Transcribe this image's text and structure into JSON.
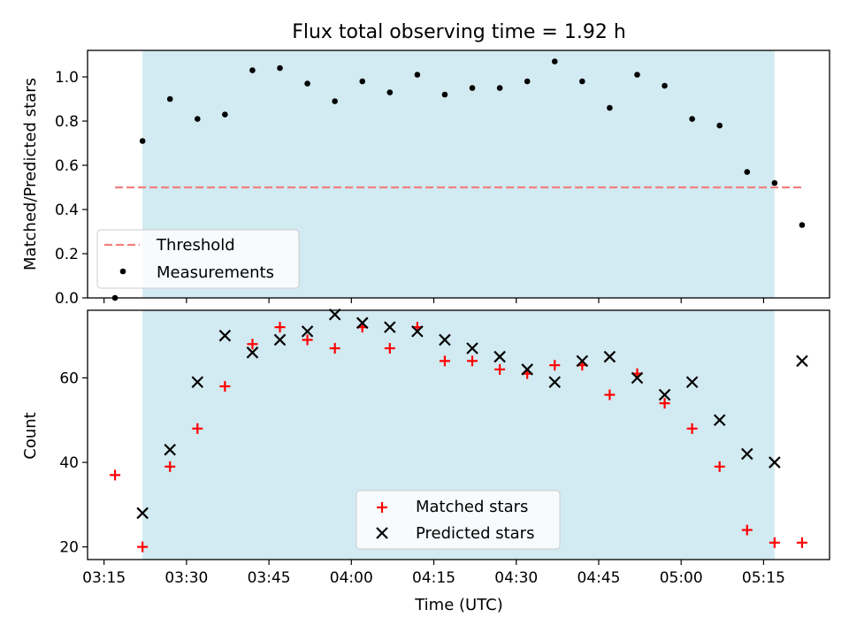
{
  "figure": {
    "title": "Flux total observing time = 1.92 h"
  },
  "chart_data": [
    {
      "type": "scatter",
      "ylabel": "Matched/Predicted stars",
      "xlim": [
        "03:12",
        "05:27"
      ],
      "ylim": [
        0,
        1.12
      ],
      "yticks": [
        "0.0",
        "0.2",
        "0.4",
        "0.6",
        "0.8",
        "1.0"
      ],
      "ytick_values": [
        0,
        0.2,
        0.4,
        0.6,
        0.8,
        1.0
      ],
      "shaded_span": [
        "03:22",
        "05:17"
      ],
      "shade_color": "#add8e6",
      "threshold": {
        "name": "Threshold",
        "value": 0.5,
        "from": "03:17",
        "to": "05:22",
        "color": "#f08080"
      },
      "legend": {
        "placement": "lower-left",
        "entries": [
          "Threshold",
          "Measurements"
        ]
      },
      "series": [
        {
          "name": "Measurements",
          "marker": "dot",
          "color": "#000000",
          "x": [
            "03:17",
            "03:22",
            "03:27",
            "03:32",
            "03:37",
            "03:42",
            "03:47",
            "03:52",
            "03:57",
            "04:02",
            "04:07",
            "04:12",
            "04:17",
            "04:22",
            "04:27",
            "04:32",
            "04:37",
            "04:42",
            "04:47",
            "04:52",
            "04:57",
            "05:02",
            "05:07",
            "05:12",
            "05:17",
            "05:22"
          ],
          "y": [
            0.0,
            0.71,
            0.9,
            0.81,
            0.83,
            1.03,
            1.04,
            0.97,
            0.89,
            0.98,
            0.93,
            1.01,
            0.92,
            0.95,
            0.95,
            0.98,
            1.07,
            0.98,
            0.86,
            1.01,
            0.96,
            0.81,
            0.78,
            0.57,
            0.52,
            0.33
          ]
        }
      ]
    },
    {
      "type": "scatter",
      "xlabel": "Time (UTC)",
      "ylabel": "Count",
      "xlim": [
        "03:12",
        "05:27"
      ],
      "ylim": [
        17,
        76
      ],
      "yticks": [
        "20",
        "40",
        "60"
      ],
      "ytick_values": [
        20,
        40,
        60
      ],
      "xticks": [
        "03:15",
        "03:30",
        "03:45",
        "04:00",
        "04:15",
        "04:30",
        "04:45",
        "05:00",
        "05:15"
      ],
      "shaded_span": [
        "03:22",
        "05:17"
      ],
      "shade_color": "#add8e6",
      "legend": {
        "placement": "lower-center",
        "entries": [
          "Matched stars",
          "Predicted stars"
        ]
      },
      "series": [
        {
          "name": "Matched stars",
          "marker": "plus",
          "color": "#ff0000",
          "x": [
            "03:17",
            "03:22",
            "03:27",
            "03:32",
            "03:37",
            "03:42",
            "03:47",
            "03:52",
            "03:57",
            "04:02",
            "04:07",
            "04:12",
            "04:17",
            "04:22",
            "04:27",
            "04:32",
            "04:37",
            "04:42",
            "04:47",
            "04:52",
            "04:57",
            "05:02",
            "05:07",
            "05:12",
            "05:17",
            "05:22"
          ],
          "y": [
            37,
            20,
            39,
            48,
            58,
            68,
            72,
            69,
            67,
            72,
            67,
            72,
            64,
            64,
            62,
            61,
            63,
            63,
            56,
            61,
            54,
            48,
            39,
            24,
            21,
            21
          ]
        },
        {
          "name": "Predicted stars",
          "marker": "x",
          "color": "#000000",
          "x": [
            "03:22",
            "03:27",
            "03:32",
            "03:37",
            "03:42",
            "03:47",
            "03:52",
            "03:57",
            "04:02",
            "04:07",
            "04:12",
            "04:17",
            "04:22",
            "04:27",
            "04:32",
            "04:37",
            "04:42",
            "04:47",
            "04:52",
            "04:57",
            "05:02",
            "05:07",
            "05:12",
            "05:17",
            "05:22"
          ],
          "y": [
            28,
            43,
            59,
            70,
            66,
            69,
            71,
            75,
            73,
            72,
            71,
            69,
            67,
            65,
            62,
            59,
            64,
            65,
            60,
            56,
            59,
            50,
            42,
            40,
            64
          ]
        }
      ]
    }
  ]
}
